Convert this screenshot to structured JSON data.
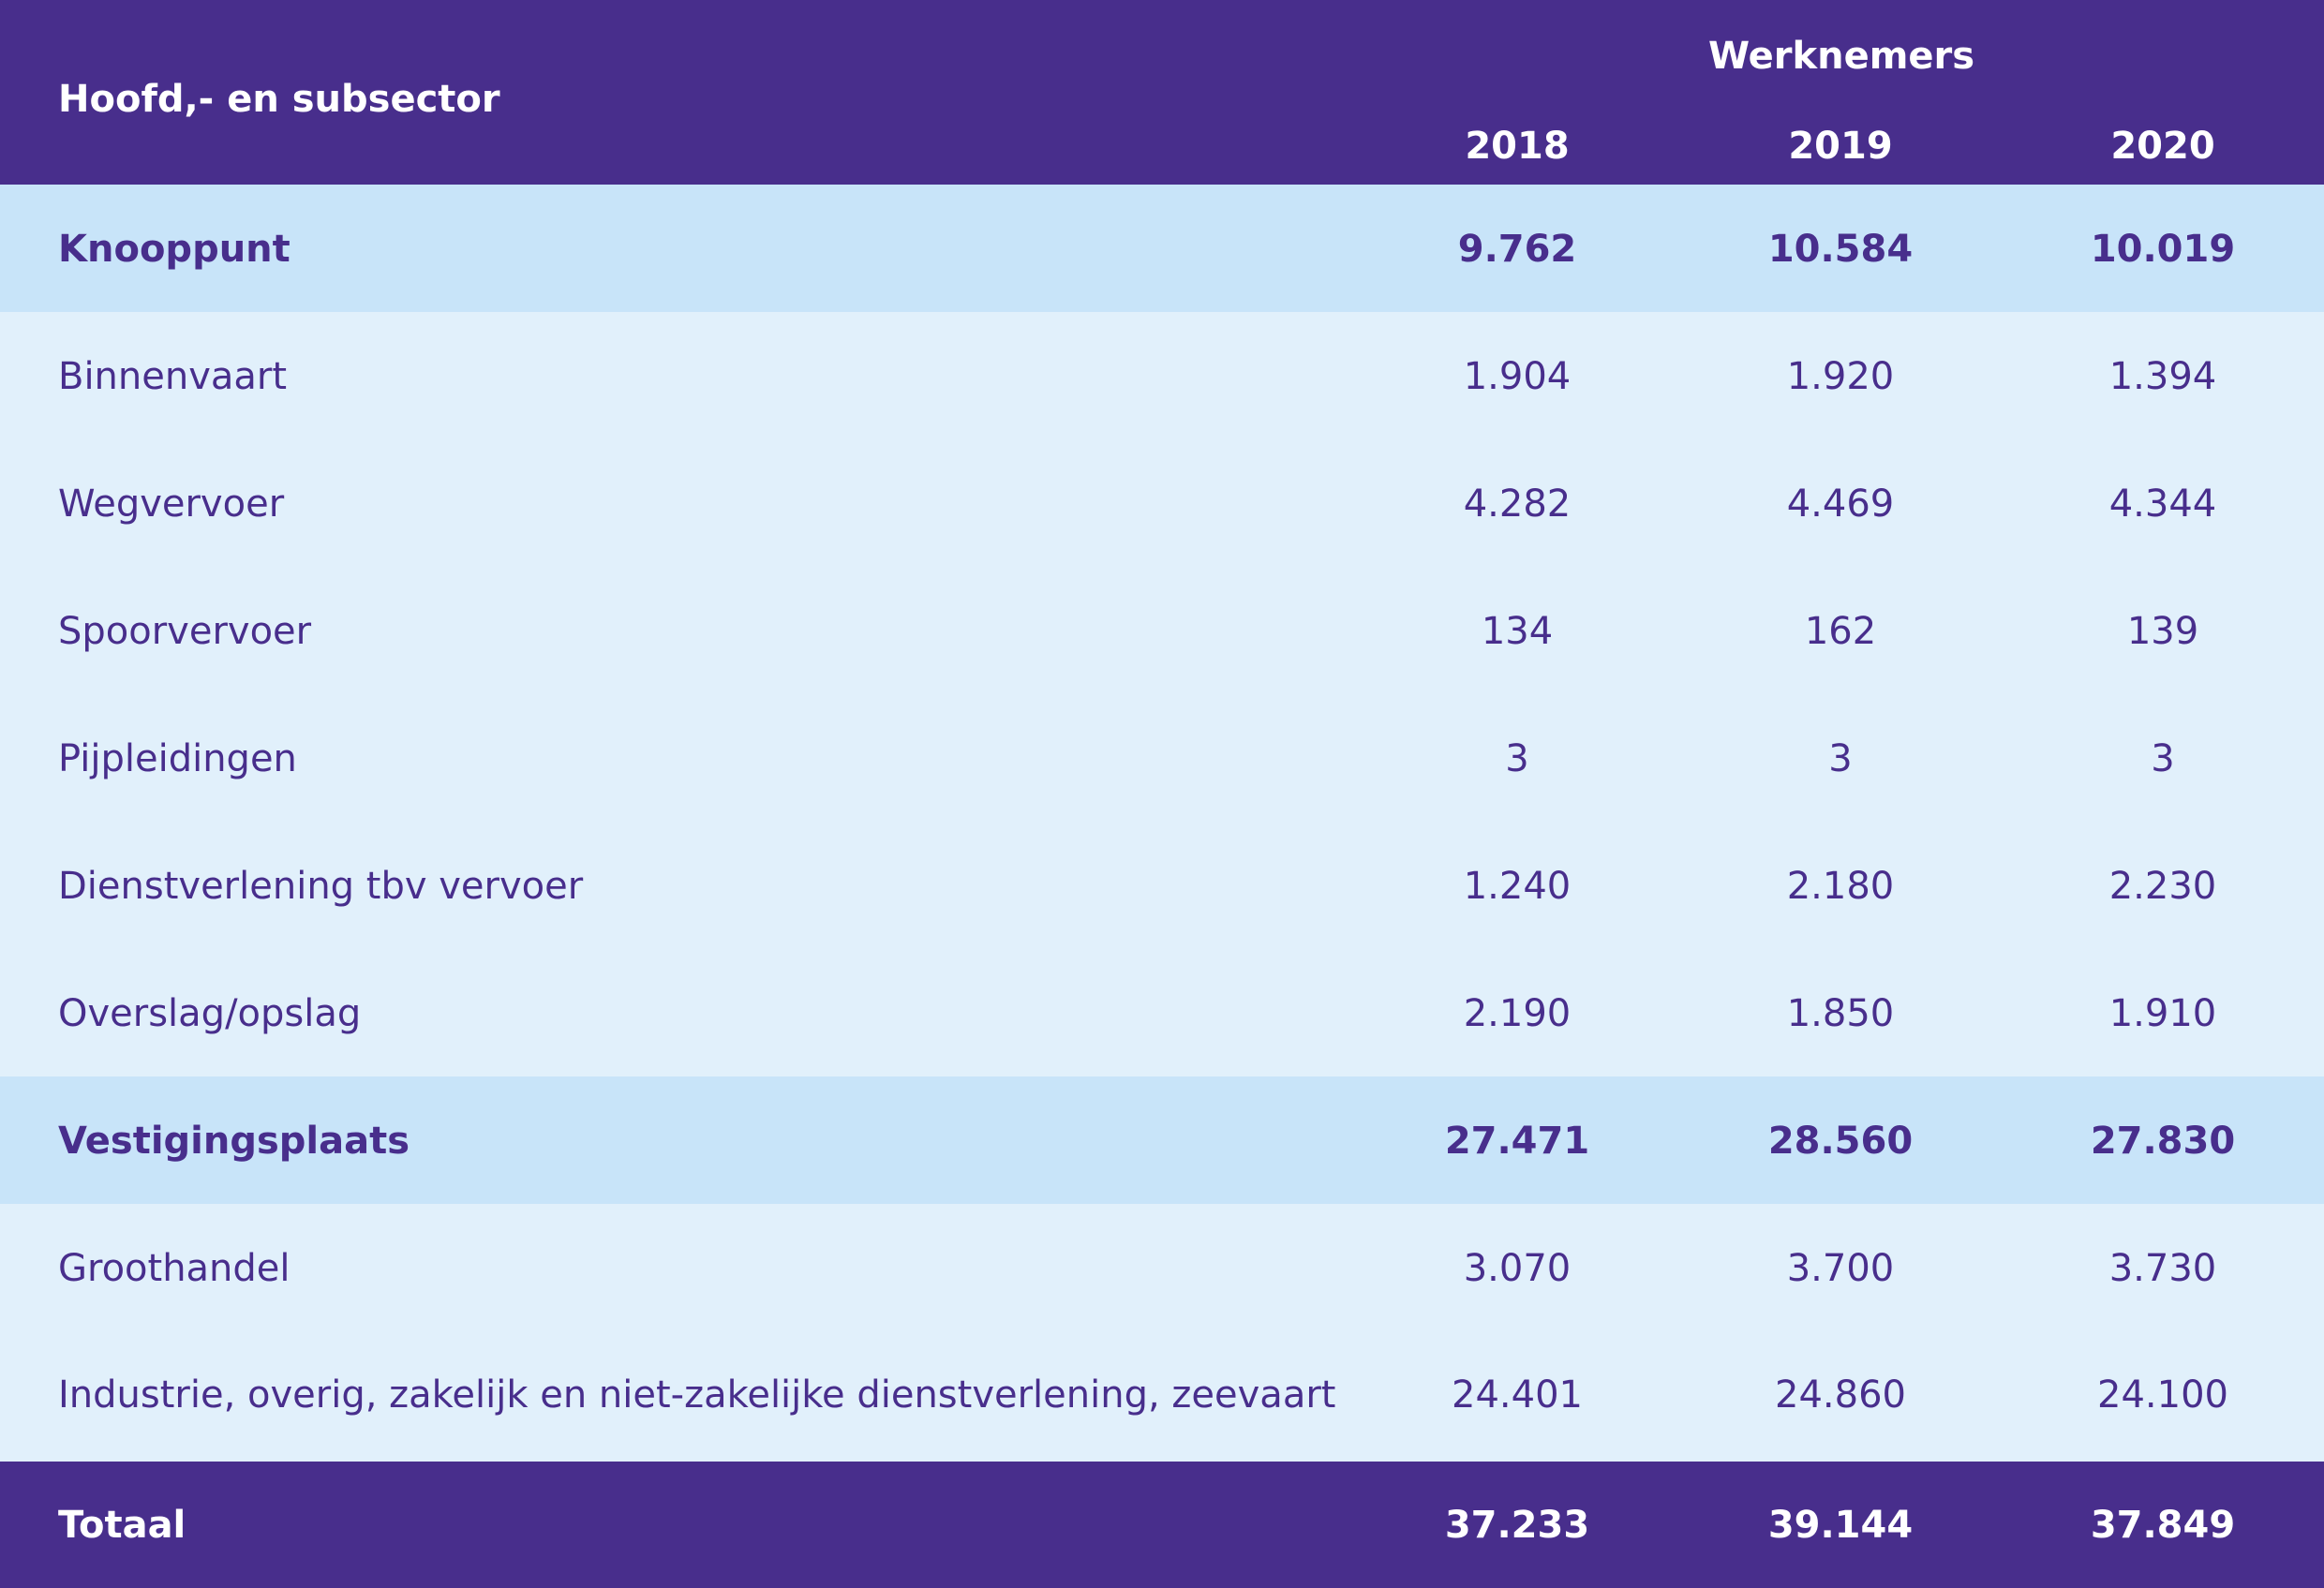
{
  "header": {
    "label": "Hoofd,- en subsector",
    "group": "Werknemers",
    "years": [
      "2018",
      "2019",
      "2020"
    ]
  },
  "rows": [
    {
      "label": "Knooppunt",
      "values": [
        "9.762",
        "10.584",
        "10.019"
      ]
    },
    {
      "label": "Binnenvaart",
      "values": [
        "1.904",
        "1.920",
        "1.394"
      ]
    },
    {
      "label": "Wegvervoer",
      "values": [
        "4.282",
        "4.469",
        "4.344"
      ]
    },
    {
      "label": "Spoorvervoer",
      "values": [
        "134",
        "162",
        "139"
      ]
    },
    {
      "label": "Pijpleidingen",
      "values": [
        "3",
        "3",
        "3"
      ]
    },
    {
      "label": "Dienstverlening tbv vervoer",
      "values": [
        "1.240",
        "2.180",
        "2.230"
      ]
    },
    {
      "label": "Overslag/opslag",
      "values": [
        "2.190",
        "1.850",
        "1.910"
      ]
    },
    {
      "label": "Vestigingsplaats",
      "values": [
        "27.471",
        "28.560",
        "27.830"
      ]
    },
    {
      "label": "Groothandel",
      "values": [
        "3.070",
        "3.700",
        "3.730"
      ]
    },
    {
      "label": "Industrie, overig, zakelijk en niet-zakelijke dienstverlening, zeevaart",
      "values": [
        "24.401",
        "24.860",
        "24.100"
      ]
    }
  ],
  "total": {
    "label": "Totaal",
    "values": [
      "37.233",
      "39.144",
      "37.849"
    ]
  }
}
